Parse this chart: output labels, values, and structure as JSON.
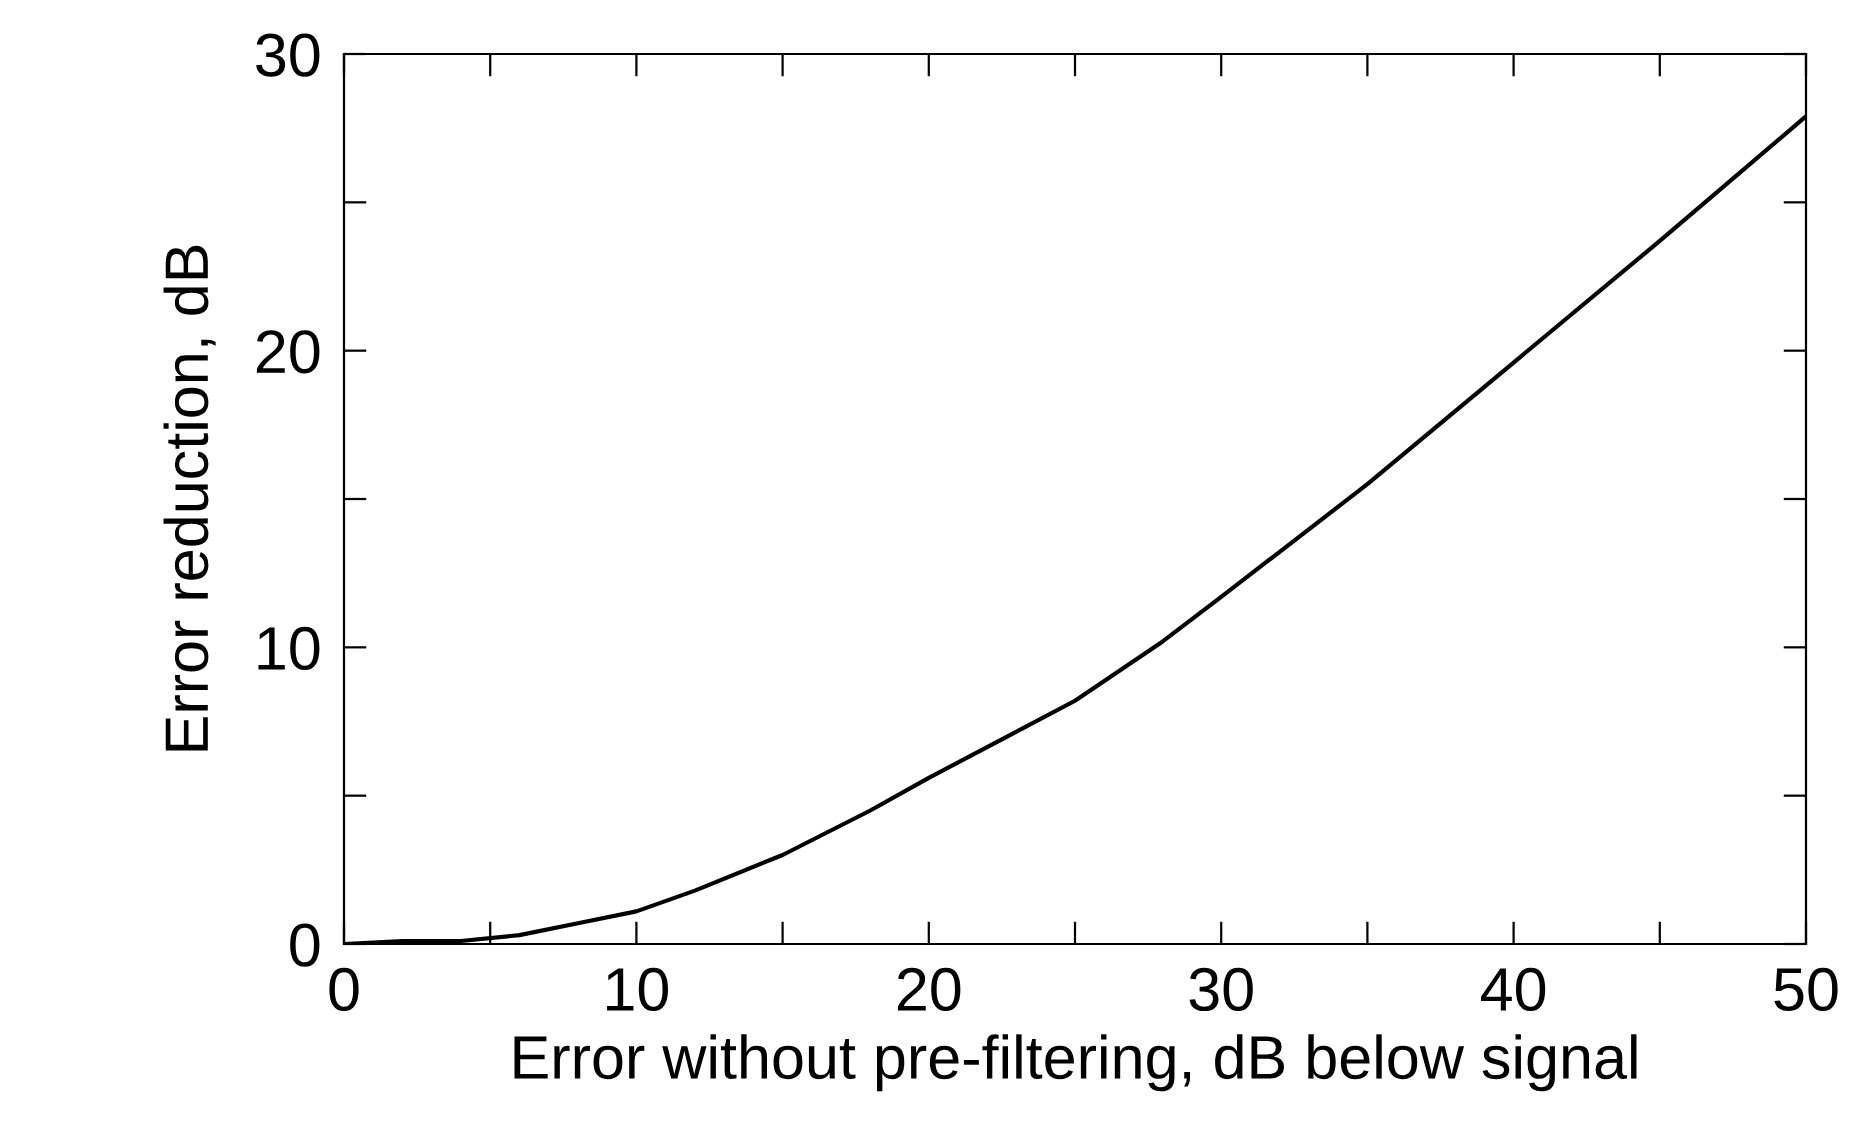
{
  "chart_data": {
    "type": "line",
    "xlabel": "Error without pre-filtering, dB below signal",
    "ylabel": "Error reduction, dB",
    "x": [
      0,
      2,
      4,
      6,
      8,
      10,
      12,
      15,
      18,
      20,
      25,
      28,
      30,
      35,
      40,
      45,
      50
    ],
    "series": [
      {
        "color": "#000000",
        "values": [
          0,
          0.1,
          0.1,
          0.3,
          0.7,
          1.1,
          1.8,
          3.0,
          4.5,
          5.6,
          8.2,
          10.2,
          11.7,
          15.5,
          19.6,
          23.7,
          27.9
        ]
      }
    ],
    "xlim": [
      0,
      50
    ],
    "ylim": [
      0,
      30
    ],
    "xticks": [
      0,
      {
        "value": 5,
        "label": null
      },
      10,
      {
        "value": 15,
        "label": null
      },
      20,
      {
        "value": 25,
        "label": null
      },
      30,
      {
        "value": 35,
        "label": null
      },
      40,
      {
        "value": 45,
        "label": null
      },
      50
    ],
    "yticks": [
      0,
      {
        "value": 5,
        "label": null
      },
      10,
      {
        "value": 15,
        "label": null
      },
      20,
      {
        "value": 25,
        "label": null
      },
      30
    ],
    "grid": false,
    "marker": "none",
    "line_style": "solid"
  }
}
